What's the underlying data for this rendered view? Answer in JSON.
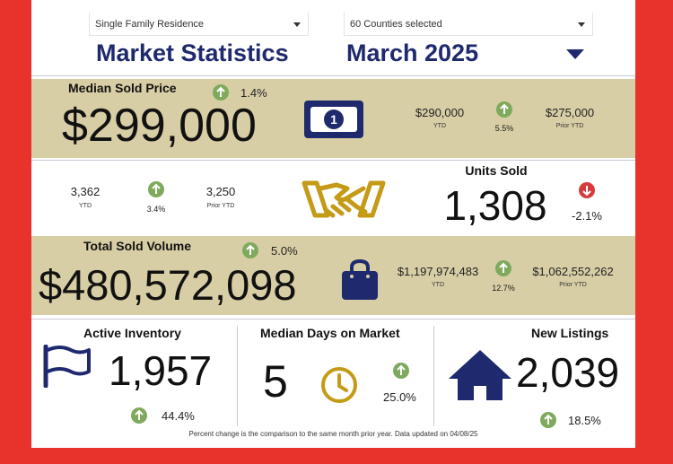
{
  "filters": {
    "property_type": "Single Family Residence",
    "counties": "60 Counties selected"
  },
  "header": {
    "title": "Market Statistics",
    "period": "March 2025"
  },
  "median_price": {
    "label": "Median Sold Price",
    "value": "$299,000",
    "change": "1.4%",
    "ytd_value": "$290,000",
    "ytd_label": "YTD",
    "ytd_change": "5.5%",
    "prior_value": "$275,000",
    "prior_label": "Prior YTD"
  },
  "units_sold": {
    "label": "Units Sold",
    "value": "1,308",
    "change": "-2.1%",
    "ytd_value": "3,362",
    "ytd_label": "YTD",
    "ytd_change": "3.4%",
    "prior_value": "3,250",
    "prior_label": "Prior YTD"
  },
  "volume": {
    "label": "Total Sold Volume",
    "value": "$480,572,098",
    "change": "5.0%",
    "ytd_value": "$1,197,974,483",
    "ytd_label": "YTD",
    "ytd_change": "12.7%",
    "prior_value": "$1,062,552,262",
    "prior_label": "Prior YTD"
  },
  "inventory": {
    "label": "Active Inventory",
    "value": "1,957",
    "change": "44.4%"
  },
  "days": {
    "label": "Median Days on Market",
    "value": "5",
    "change": "25.0%"
  },
  "listings": {
    "label": "New Listings",
    "value": "2,039",
    "change": "18.5%"
  },
  "footer": "Percent change is the comparison to the same month prior year. Data updated on 04/08/25",
  "colors": {
    "navy": "#1f2a6e",
    "gold": "#c49a16",
    "band": "#d8cea5",
    "up": "#7faa5d",
    "down": "#d63c3c",
    "frame": "#e8322c"
  },
  "icons": [
    "money-icon",
    "handshake-icon",
    "bag-icon",
    "flag-icon",
    "clock-icon",
    "house-icon",
    "arrow-up-icon",
    "arrow-down-icon",
    "chevron-down-icon"
  ]
}
